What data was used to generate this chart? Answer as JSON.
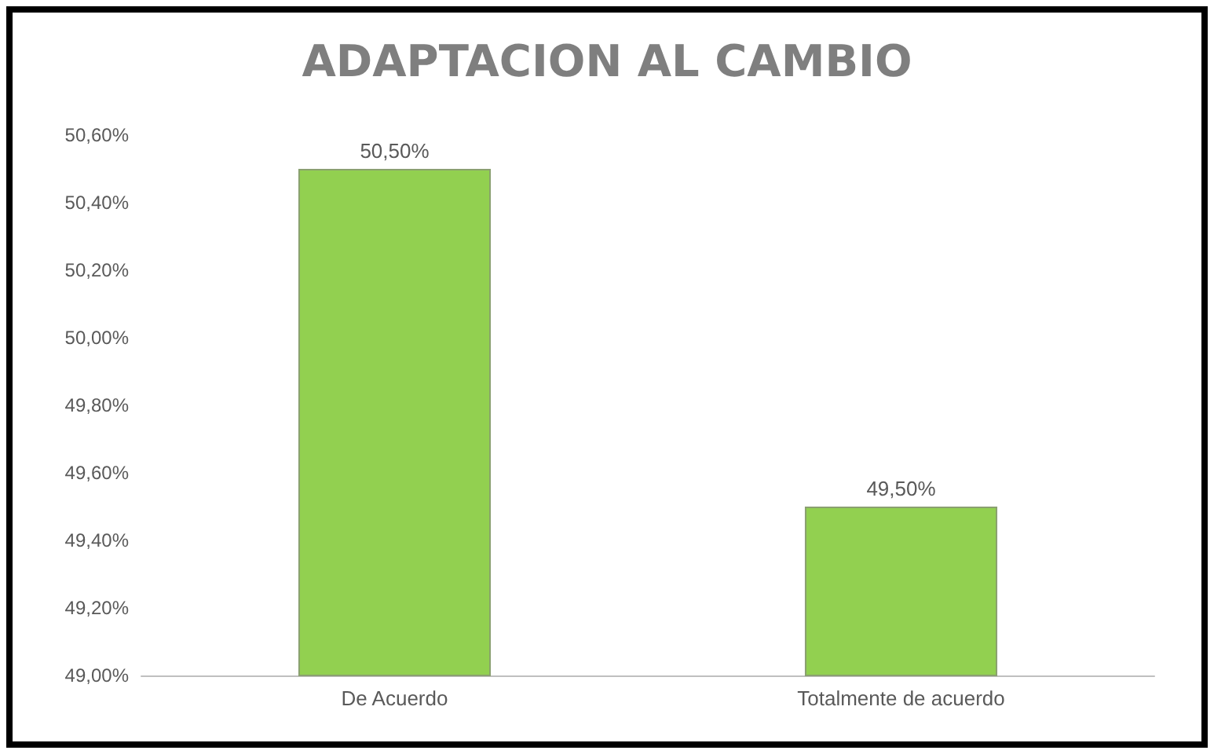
{
  "chart_data": {
    "type": "bar",
    "title": "ADAPTACION AL CAMBIO",
    "categories": [
      "De Acuerdo",
      "Totalmente de acuerdo"
    ],
    "values": [
      50.5,
      49.5
    ],
    "color": "#92d050",
    "value_labels": [
      "50,50%",
      "49,50%"
    ],
    "ylim": [
      49,
      50.6
    ],
    "yticks": [
      {
        "value": 49,
        "label": "49,00%"
      },
      {
        "value": 49.2,
        "label": "49,20%"
      },
      {
        "value": 49.4,
        "label": "49,40%"
      },
      {
        "value": 49.6,
        "label": "49,60%"
      },
      {
        "value": 49.8,
        "label": "49,80%"
      },
      {
        "value": 50,
        "label": "50,00%"
      },
      {
        "value": 50.2,
        "label": "50,20%"
      },
      {
        "value": 50.4,
        "label": "50,40%"
      },
      {
        "value": 50.6,
        "label": "50,60%"
      }
    ]
  }
}
